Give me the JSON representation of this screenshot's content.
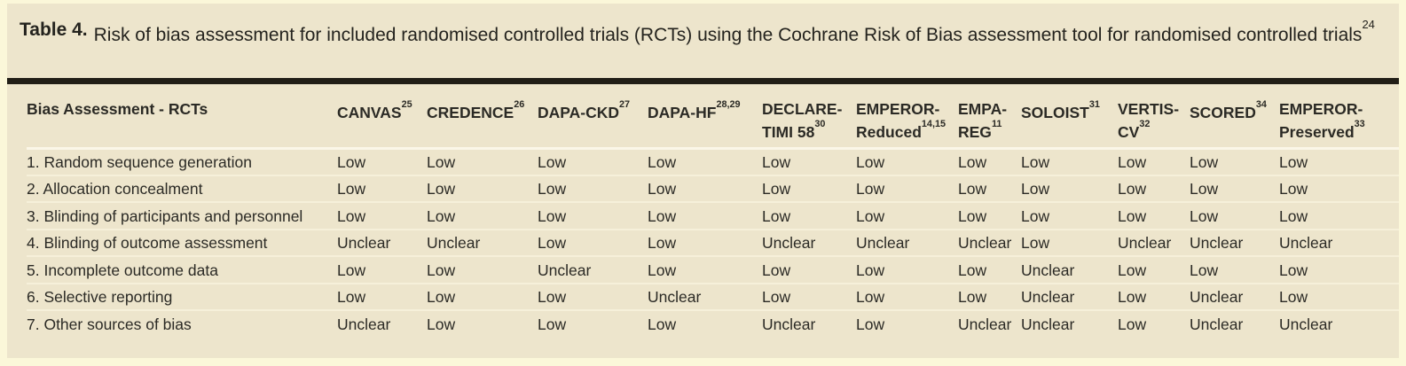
{
  "colors": {
    "page_bg": "#fbf7d9",
    "panel_bg": "#ede5cc",
    "bar": "#211e16",
    "text": "#2b2a25",
    "divider": "#f6f0da",
    "divider_strong": "#fbf7e8"
  },
  "table": {
    "number_label": "Table 4.",
    "caption": "Risk of bias assessment for included randomised controlled trials (RCTs) using the Cochrane Risk of Bias assessment tool for randomised controlled trials",
    "caption_ref": "24",
    "row_header": "Bias Assessment - RCTs",
    "columns": [
      {
        "id": "canvas",
        "lines": [
          "CANVAS"
        ],
        "ref": "25"
      },
      {
        "id": "credence",
        "lines": [
          "CREDENCE"
        ],
        "ref": "26"
      },
      {
        "id": "dapa-ckd",
        "lines": [
          "DAPA-CKD"
        ],
        "ref": "27"
      },
      {
        "id": "dapa-hf",
        "lines": [
          "DAPA-HF"
        ],
        "ref": "28,29"
      },
      {
        "id": "declare-timi-58",
        "lines": [
          "DECLARE-",
          "TIMI 58"
        ],
        "ref": "30"
      },
      {
        "id": "emperor-reduced",
        "lines": [
          "EMPEROR-",
          "Reduced"
        ],
        "ref": "14,15"
      },
      {
        "id": "empa-reg",
        "lines": [
          "EMPA-",
          "REG"
        ],
        "ref": "11"
      },
      {
        "id": "soloist",
        "lines": [
          "SOLOIST"
        ],
        "ref": "31"
      },
      {
        "id": "vertis-cv",
        "lines": [
          "VERTIS-",
          "CV"
        ],
        "ref": "32"
      },
      {
        "id": "scored",
        "lines": [
          "SCORED"
        ],
        "ref": "34"
      },
      {
        "id": "emperor-preserved",
        "lines": [
          "EMPEROR-",
          "Preserved"
        ],
        "ref": "33"
      }
    ],
    "rows": [
      {
        "label": "1. Random sequence generation",
        "values": [
          "Low",
          "Low",
          "Low",
          "Low",
          "Low",
          "Low",
          "Low",
          "Low",
          "Low",
          "Low",
          "Low"
        ]
      },
      {
        "label": "2. Allocation concealment",
        "values": [
          "Low",
          "Low",
          "Low",
          "Low",
          "Low",
          "Low",
          "Low",
          "Low",
          "Low",
          "Low",
          "Low"
        ]
      },
      {
        "label": "3. Blinding of participants and personnel",
        "values": [
          "Low",
          "Low",
          "Low",
          "Low",
          "Low",
          "Low",
          "Low",
          "Low",
          "Low",
          "Low",
          "Low"
        ]
      },
      {
        "label": "4. Blinding of outcome assessment",
        "values": [
          "Unclear",
          "Unclear",
          "Low",
          "Low",
          "Unclear",
          "Unclear",
          "Unclear",
          "Low",
          "Unclear",
          "Unclear",
          "Unclear"
        ]
      },
      {
        "label": "5. Incomplete outcome data",
        "values": [
          "Low",
          "Low",
          "Unclear",
          "Low",
          "Low",
          "Low",
          "Low",
          "Unclear",
          "Low",
          "Low",
          "Low"
        ]
      },
      {
        "label": "6. Selective reporting",
        "values": [
          "Low",
          "Low",
          "Low",
          "Unclear",
          "Low",
          "Low",
          "Low",
          "Unclear",
          "Low",
          "Unclear",
          "Low"
        ]
      },
      {
        "label": "7. Other sources of bias",
        "values": [
          "Unclear",
          "Low",
          "Low",
          "Low",
          "Unclear",
          "Low",
          "Unclear",
          "Unclear",
          "Low",
          "Unclear",
          "Unclear"
        ]
      }
    ]
  }
}
